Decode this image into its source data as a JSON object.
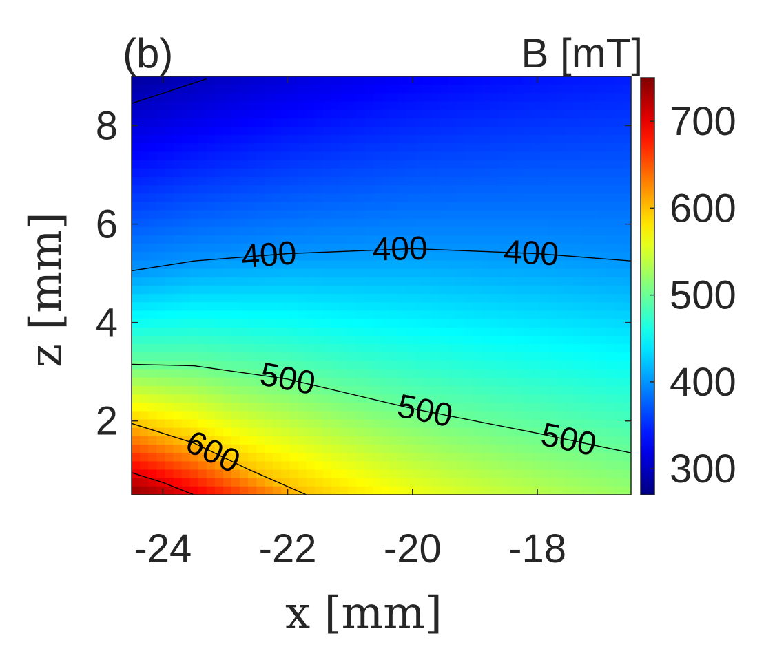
{
  "panel_label": "(b)",
  "colorbar_title": "B [mT]",
  "chart_data": {
    "type": "heatmap",
    "title": "",
    "xlabel": "x [mm]",
    "ylabel": "z [mm]",
    "xlim": [
      -24.5,
      -16.5
    ],
    "ylim": [
      0.5,
      9.0
    ],
    "x_ticks": [
      -24,
      -22,
      -20,
      -18
    ],
    "y_ticks": [
      2,
      4,
      6,
      8
    ],
    "colorbar": {
      "label": "B [mT]",
      "range": [
        270,
        750
      ],
      "ticks": [
        300,
        400,
        500,
        600,
        700
      ],
      "colormap": "jet",
      "min_color": "#00008f",
      "max_color": "#800000"
    },
    "contour_lines": [
      {
        "level": 300,
        "points": [
          [
            -24.5,
            8.45
          ],
          [
            -23.9,
            8.7
          ],
          [
            -23.3,
            8.95
          ]
        ],
        "labeled": false
      },
      {
        "level": 400,
        "points": [
          [
            -24.5,
            5.05
          ],
          [
            -23.5,
            5.25
          ],
          [
            -22.0,
            5.4
          ],
          [
            -20.0,
            5.5
          ],
          [
            -18.0,
            5.4
          ],
          [
            -16.5,
            5.25
          ]
        ],
        "labeled": true,
        "label_x": [
          -22.3,
          -20.2,
          -18.1
        ]
      },
      {
        "level": 500,
        "points": [
          [
            -24.5,
            3.15
          ],
          [
            -23.5,
            3.12
          ],
          [
            -22.0,
            2.85
          ],
          [
            -20.0,
            2.25
          ],
          [
            -18.0,
            1.75
          ],
          [
            -16.5,
            1.35
          ]
        ],
        "labeled": true,
        "label_x": [
          -22.0,
          -19.8,
          -17.5
        ]
      },
      {
        "level": 600,
        "points": [
          [
            -24.5,
            1.95
          ],
          [
            -23.5,
            1.55
          ],
          [
            -22.6,
            1.0
          ],
          [
            -21.7,
            0.5
          ]
        ],
        "labeled": true,
        "label_x": [
          -23.2
        ]
      },
      {
        "level": 700,
        "points": [
          [
            -24.5,
            0.95
          ],
          [
            -24.0,
            0.75
          ],
          [
            -23.5,
            0.5
          ]
        ],
        "labeled": false
      }
    ],
    "grid": false
  }
}
